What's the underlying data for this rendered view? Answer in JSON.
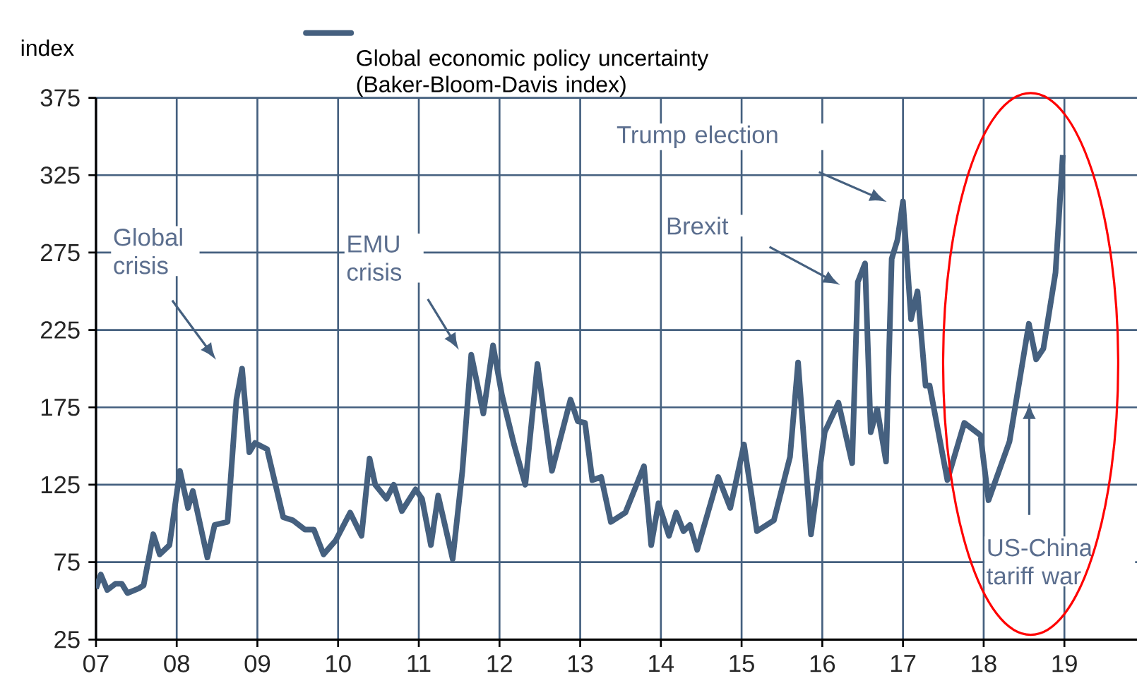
{
  "chart_data": {
    "type": "line",
    "ylabel": "index",
    "x": [
      2007.0,
      2007.06,
      2007.14,
      2007.24,
      2007.32,
      2007.39,
      2007.53,
      2007.59,
      2007.71,
      2007.79,
      2007.91,
      2008.04,
      2008.14,
      2008.2,
      2008.38,
      2008.47,
      2008.63,
      2008.74,
      2008.81,
      2008.9,
      2008.97,
      2009.12,
      2009.32,
      2009.44,
      2009.59,
      2009.7,
      2009.82,
      2009.97,
      2010.15,
      2010.29,
      2010.39,
      2010.46,
      2010.6,
      2010.69,
      2010.79,
      2010.96,
      2011.04,
      2011.15,
      2011.24,
      2011.42,
      2011.54,
      2011.65,
      2011.8,
      2011.92,
      2012.03,
      2012.18,
      2012.32,
      2012.47,
      2012.65,
      2012.88,
      2012.97,
      2013.06,
      2013.15,
      2013.26,
      2013.38,
      2013.56,
      2013.79,
      2013.88,
      2013.97,
      2014.1,
      2014.19,
      2014.28,
      2014.36,
      2014.45,
      2014.71,
      2014.86,
      2015.03,
      2015.19,
      2015.4,
      2015.6,
      2015.7,
      2015.86,
      2016.03,
      2016.2,
      2016.37,
      2016.44,
      2016.53,
      2016.6,
      2016.68,
      2016.79,
      2016.86,
      2016.93,
      2017.0,
      2017.1,
      2017.18,
      2017.28,
      2017.33,
      2017.55,
      2017.76,
      2017.96,
      2018.06,
      2018.32,
      2018.56,
      2018.65,
      2018.74,
      2018.89,
      2018.98
    ],
    "series": [
      {
        "name": "Global economic policy uncertainty (Baker-Bloom-Davis index)",
        "color": "#45607f",
        "values": [
          58,
          67,
          57,
          61,
          61,
          55,
          58,
          60,
          93,
          80,
          86,
          134,
          110,
          121,
          78,
          99,
          101,
          180,
          200,
          146,
          152,
          148,
          104,
          102,
          96,
          96,
          80,
          89,
          107,
          92,
          142,
          125,
          116,
          125,
          108,
          122,
          116,
          86,
          118,
          77,
          134,
          209,
          171,
          215,
          183,
          151,
          125,
          203,
          134,
          180,
          166,
          165,
          128,
          130,
          101,
          107,
          137,
          86,
          113,
          92,
          107,
          95,
          99,
          83,
          130,
          110,
          151,
          95,
          102,
          143,
          204,
          93,
          159,
          178,
          139,
          256,
          268,
          159,
          174,
          140,
          271,
          283,
          308,
          232,
          250,
          189,
          189,
          128,
          165,
          157,
          115,
          153,
          229,
          206,
          213,
          262,
          338
        ]
      }
    ],
    "xlim": [
      2007,
      2019.9
    ],
    "xticks": [
      {
        "value": 2007,
        "label": "07"
      },
      {
        "value": 2008,
        "label": "08"
      },
      {
        "value": 2009,
        "label": "09"
      },
      {
        "value": 2010,
        "label": "10"
      },
      {
        "value": 2011,
        "label": "11"
      },
      {
        "value": 2012,
        "label": "12"
      },
      {
        "value": 2013,
        "label": "13"
      },
      {
        "value": 2014,
        "label": "14"
      },
      {
        "value": 2015,
        "label": "15"
      },
      {
        "value": 2016,
        "label": "16"
      },
      {
        "value": 2017,
        "label": "17"
      },
      {
        "value": 2018,
        "label": "18"
      },
      {
        "value": 2019,
        "label": "19"
      }
    ],
    "ylim": [
      25,
      375
    ],
    "yticks": [
      25,
      75,
      125,
      175,
      225,
      275,
      325,
      375
    ],
    "grid": true,
    "legend": "top",
    "line_style": "solid",
    "marker": "none",
    "annotations": [
      "Global crisis",
      "EMU crisis",
      "Brexit",
      "Trump election",
      "US-China tariff war"
    ]
  }
}
